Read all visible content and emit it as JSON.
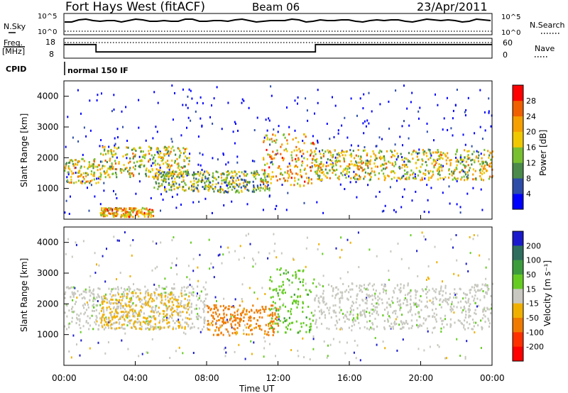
{
  "header": {
    "title": "Fort Hays West (fitACF)",
    "beam": "Beam 06",
    "date": "23/Apr/2011"
  },
  "noise_panel": {
    "left_label": "N.Sky",
    "right_label": "N.Search",
    "y_ticks_left": [
      "10^5",
      "10^0"
    ],
    "y_ticks_right": [
      "10^5",
      "10^0"
    ]
  },
  "freq_panel": {
    "left_label_line1": "Freq.",
    "left_label_line2": "[MHz]",
    "right_label": "Nave",
    "y_ticks_left": [
      "18",
      "8"
    ],
    "y_ticks_right": [
      "60",
      "0"
    ]
  },
  "cpid_panel": {
    "label": "CPID",
    "value": "normal 150 IF"
  },
  "x_axis": {
    "tick_labels": [
      "00:00",
      "04:00",
      "08:00",
      "12:00",
      "16:00",
      "20:00",
      "00:00"
    ],
    "xlabel": "Time UT"
  },
  "power_colorbar": {
    "label": "Power [dB]",
    "tick_labels": [
      "4",
      "8",
      "12",
      "16",
      "20",
      "24",
      "28"
    ],
    "colors": [
      "#0000ff",
      "#2c4ca8",
      "#4a8a4a",
      "#78c030",
      "#f0c800",
      "#f5a000",
      "#f06000",
      "#ff0000"
    ]
  },
  "velocity_colorbar": {
    "label": "Velocity [m s⁻¹]",
    "tick_labels": [
      "200",
      "100",
      "50",
      "15",
      "-15",
      "-50",
      "-100",
      "-200"
    ],
    "colors": [
      "#1a1acc",
      "#2e6e5e",
      "#3c9c3c",
      "#66cc22",
      "#c8c8c0",
      "#f0b000",
      "#f07a00",
      "#ff3000",
      "#ff0000"
    ]
  },
  "chart_data": [
    {
      "type": "line",
      "title": "N.Sky / N.Search",
      "xlabel": "",
      "ylabel": "",
      "x": [
        0,
        2,
        4,
        6,
        8,
        10,
        12,
        14,
        16,
        18,
        20,
        22,
        24
      ],
      "series": [
        {
          "name": "N.Sky",
          "values": [
            50000,
            50000,
            50000,
            50000,
            50000,
            50000,
            50000,
            50000,
            50000,
            50000,
            50000,
            50000,
            50000
          ]
        },
        {
          "name": "N.Search",
          "values": [
            1,
            1,
            1,
            1,
            1,
            1,
            1,
            1,
            1,
            1,
            1,
            1,
            1
          ]
        }
      ],
      "ylim": [
        1,
        100000
      ],
      "yscale": "log"
    },
    {
      "type": "line",
      "title": "Freq. / Nave",
      "xlabel": "",
      "ylabel": "Freq. [MHz]",
      "x": [
        0,
        1.8,
        1.8,
        14.1,
        14.1,
        24
      ],
      "series": [
        {
          "name": "Freq.",
          "values": [
            15,
            15,
            11,
            11,
            15,
            15
          ]
        },
        {
          "name": "Nave",
          "values": [
            52,
            52,
            52,
            52,
            52,
            52
          ]
        }
      ],
      "ylim": [
        8,
        18
      ]
    },
    {
      "type": "heatmap",
      "title": "Power",
      "xlabel": "",
      "ylabel": "Slant Range [km]",
      "xlim": [
        0,
        24
      ],
      "ylim": [
        0,
        4500
      ],
      "yticks": [
        1000,
        2000,
        3000,
        4000
      ],
      "colorbar": {
        "label": "Power [dB]",
        "ticks": [
          4,
          8,
          12,
          16,
          20,
          24,
          28
        ]
      },
      "features": [
        {
          "t_start": 0.0,
          "t_end": 2.0,
          "range_low": 1200,
          "range_high": 2000,
          "level_db": 20
        },
        {
          "t_start": 2.0,
          "t_end": 7.0,
          "range_low": 1400,
          "range_high": 2400,
          "level_db": 18
        },
        {
          "t_start": 5.0,
          "t_end": 11.5,
          "range_low": 900,
          "range_high": 1600,
          "level_db": 14
        },
        {
          "t_start": 11.0,
          "t_end": 14.0,
          "range_low": 1100,
          "range_high": 2800,
          "level_db": 22
        },
        {
          "t_start": 14.0,
          "t_end": 24.0,
          "range_low": 1300,
          "range_high": 2300,
          "level_db": 18
        },
        {
          "t_start": 2.0,
          "t_end": 5.0,
          "range_low": 100,
          "range_high": 400,
          "level_db": 24
        }
      ]
    },
    {
      "type": "heatmap",
      "title": "Velocity",
      "xlabel": "Time UT",
      "ylabel": "Slant Range [km]",
      "xlim": [
        0,
        24
      ],
      "ylim": [
        0,
        4500
      ],
      "yticks": [
        1000,
        2000,
        3000,
        4000
      ],
      "colorbar": {
        "label": "Velocity [m s⁻¹]",
        "ticks": [
          200,
          100,
          50,
          15,
          -15,
          -50,
          -100,
          -200
        ]
      },
      "features": [
        {
          "t_start": 0.0,
          "t_end": 8.0,
          "range_low": 1200,
          "range_high": 2600,
          "velocity": 0
        },
        {
          "t_start": 2.0,
          "t_end": 7.0,
          "range_low": 1200,
          "range_high": 2400,
          "velocity": -50
        },
        {
          "t_start": 8.0,
          "t_end": 12.0,
          "range_low": 1000,
          "range_high": 2000,
          "velocity": -75
        },
        {
          "t_start": 11.5,
          "t_end": 14.0,
          "range_low": 1100,
          "range_high": 3200,
          "velocity": 40
        },
        {
          "t_start": 14.0,
          "t_end": 24.0,
          "range_low": 1200,
          "range_high": 2700,
          "velocity": 0
        }
      ]
    }
  ]
}
